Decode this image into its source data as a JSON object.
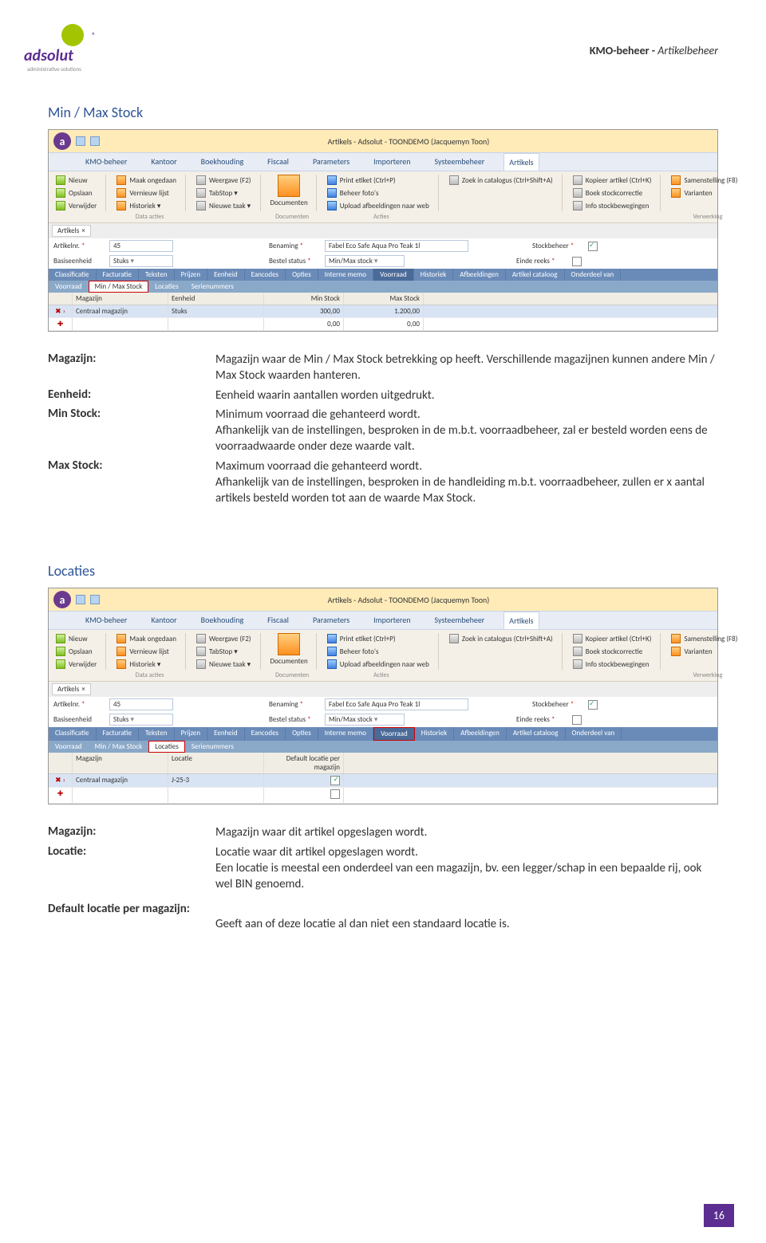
{
  "header": {
    "crumb1": "KMO-beheer - ",
    "crumb2": "Artikelbeheer"
  },
  "logo": {
    "text": "adsolut",
    "sub": "administrative solutions"
  },
  "section1": {
    "title": "Min / Max Stock",
    "windowTitle": "Artikels - Adsolut - TOONDEMO (Jacquemyn Toon)",
    "menu": [
      "KMO-beheer",
      "Kantoor",
      "Boekhouding",
      "Fiscaal",
      "Parameters",
      "Importeren",
      "Systeembeheer",
      "Artikels"
    ],
    "ribbon": {
      "g1": [
        "Nieuw",
        "Opslaan",
        "Verwijder"
      ],
      "g2": [
        "Maak ongedaan",
        "Vernieuw lijst",
        "Historiek ▾"
      ],
      "g3": [
        "Weergave (F2)",
        "TabStop ▾",
        "Nieuwe taak ▾"
      ],
      "g4label": "Documenten",
      "g5": [
        "Print etiket (Ctrl+P)",
        "Beheer foto's",
        "Upload afbeeldingen naar web"
      ],
      "g5b": "Zoek in catalogus (Ctrl+Shift+A)",
      "g6": [
        "Kopieer artikel (Ctrl+K)",
        "Boek stockcorrectie",
        "Info stockbewegingen"
      ],
      "g7": [
        "Samenstelling (F8)",
        "Varianten"
      ],
      "labels": [
        "Data acties",
        "",
        "Documenten",
        "Acties",
        "",
        "Verwerking"
      ]
    },
    "tabsRow": {
      "workspace": "Artikels"
    },
    "form": {
      "artikelnr_lbl": "Artikelnr.",
      "artikelnr": "45",
      "benaming_lbl": "Benaming",
      "benaming": "Fabel Eco Safe Aqua Pro Teak 1l",
      "stockbeheer_lbl": "Stockbeheer",
      "basis_lbl": "Basiseenheid",
      "basis": "Stuks",
      "bestel_lbl": "Bestel status",
      "bestel": "Min/Max stock",
      "einde_lbl": "Einde reeks"
    },
    "innertabs": [
      "Classificatie",
      "Facturatie",
      "Teksten",
      "Prijzen",
      "Eenheid",
      "Eancodes",
      "Opties",
      "Interne memo",
      "Voorraad",
      "Historiek",
      "Afbeeldingen",
      "Artikel cataloog",
      "Onderdeel van"
    ],
    "subtabs": [
      "Voorraad",
      "Min / Max Stock",
      "Locaties",
      "Serienummers"
    ],
    "grid": {
      "cols": [
        "Magazijn",
        "Eenheid",
        "Min Stock",
        "Max Stock"
      ],
      "rows": [
        [
          "Centraal magazijn",
          "Stuks",
          "300,00",
          "1.200,00"
        ],
        [
          "",
          "",
          "0,00",
          "0,00"
        ]
      ]
    },
    "defs": [
      {
        "term": "Magazijn:",
        "desc": "Magazijn waar de Min / Max Stock betrekking op heeft. Verschillende magazijnen kunnen andere Min / Max Stock waarden hanteren."
      },
      {
        "term": "Eenheid:",
        "desc": "Eenheid waarin aantallen worden uitgedrukt."
      },
      {
        "term": "Min Stock:",
        "desc": "Minimum voorraad die gehanteerd wordt.\nAfhankelijk van de instellingen, besproken in de m.b.t. voorraadbeheer, zal er besteld worden eens de voorraadwaarde onder deze waarde valt."
      },
      {
        "term": "Max Stock:",
        "desc": "Maximum voorraad die gehanteerd wordt.\nAfhankelijk van de instellingen, besproken in de handleiding m.b.t. voorraadbeheer, zullen er x aantal artikels besteld worden tot aan de waarde Max Stock."
      }
    ]
  },
  "section2": {
    "title": "Locaties",
    "grid": {
      "cols": [
        "Magazijn",
        "Locatie",
        "Default locatie per magazijn"
      ],
      "rows": [
        [
          "Centraal magazijn",
          "J-25-3",
          "✓"
        ],
        [
          "",
          "",
          ""
        ]
      ]
    },
    "defs": [
      {
        "term": "Magazijn:",
        "desc": "Magazijn waar dit artikel opgeslagen wordt."
      },
      {
        "term": "Locatie:",
        "desc": "Locatie waar dit artikel opgeslagen wordt.\nEen locatie is meestal een onderdeel van een magazijn, bv. een legger/schap in een bepaalde rij, ook wel BIN genoemd."
      }
    ],
    "fullTerm": "Default locatie per magazijn:",
    "fullDesc": "Geeft aan of deze locatie al dan niet een standaard locatie is."
  },
  "pageNum": "16"
}
